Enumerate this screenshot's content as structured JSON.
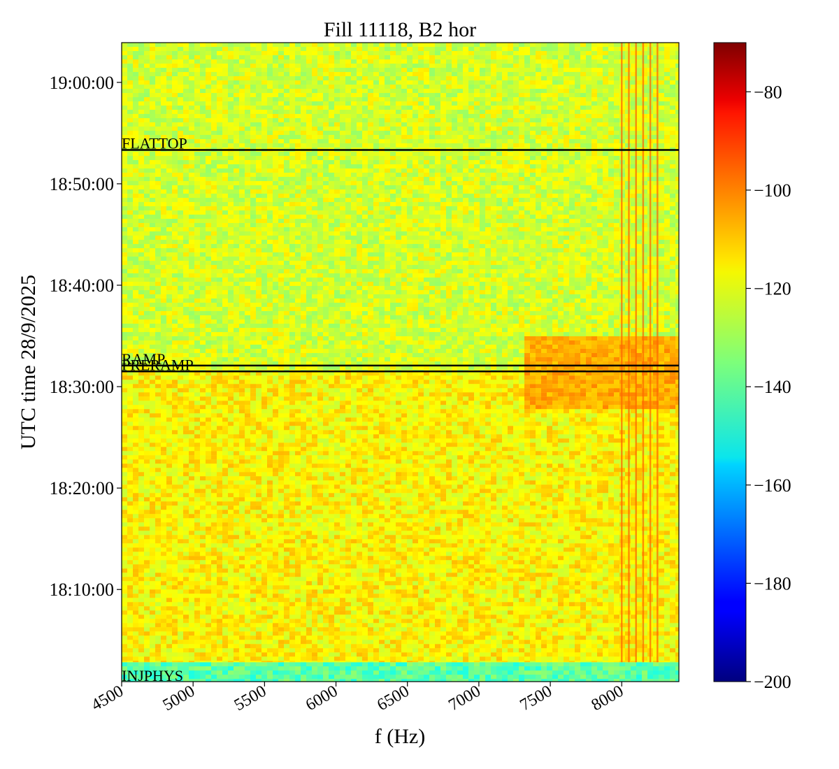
{
  "chart_data": {
    "type": "heatmap",
    "title": "Fill 11118, B2 hor",
    "xlabel": "f (Hz)",
    "ylabel": "UTC time 28/9/2025",
    "xlim": [
      4500,
      8400
    ],
    "ylim_time": [
      "18:00:55",
      "19:03:55"
    ],
    "x_ticks": [
      4500,
      5000,
      5500,
      6000,
      6500,
      7000,
      7500,
      8000
    ],
    "x_tick_labels": [
      "4500",
      "5000",
      "5500",
      "6000",
      "6500",
      "7000",
      "7500",
      "8000"
    ],
    "y_ticks": [
      "18:10:00",
      "18:20:00",
      "18:30:00",
      "18:40:00",
      "18:50:00",
      "19:00:00"
    ],
    "y_tick_labels": [
      "18:10:00",
      "18:20:00",
      "18:30:00",
      "18:40:00",
      "18:50:00",
      "19:00:00"
    ],
    "colormap": "jet",
    "colorbar": {
      "range": [
        -200,
        -70
      ],
      "ticks": [
        -80,
        -100,
        -120,
        -140,
        -160,
        -180,
        -200
      ],
      "tick_labels": [
        "−80",
        "−100",
        "−120",
        "−140",
        "−160",
        "−180",
        "−200"
      ]
    },
    "background_levels": [
      {
        "from": "18:00:55",
        "to": "18:02:50",
        "level": -140
      },
      {
        "from": "18:02:50",
        "to": "18:31:30",
        "level": -118
      },
      {
        "from": "18:31:30",
        "to": "19:03:55",
        "level": -124
      }
    ],
    "spectral_lines_hz": [
      8000,
      8050,
      8100,
      8150,
      8200,
      8250
    ],
    "broadband_region": {
      "f_from": 7300,
      "f_to": 8400,
      "t_from": "18:28:00",
      "t_to": "18:35:00",
      "level": -108
    },
    "beam_modes": [
      {
        "label": "INJPHYS",
        "time": "18:00:55"
      },
      {
        "label": "PRERAMP",
        "time": "18:31:30"
      },
      {
        "label": "RAMP",
        "time": "18:32:05"
      },
      {
        "label": "FLATTOP",
        "time": "18:53:20"
      }
    ]
  }
}
